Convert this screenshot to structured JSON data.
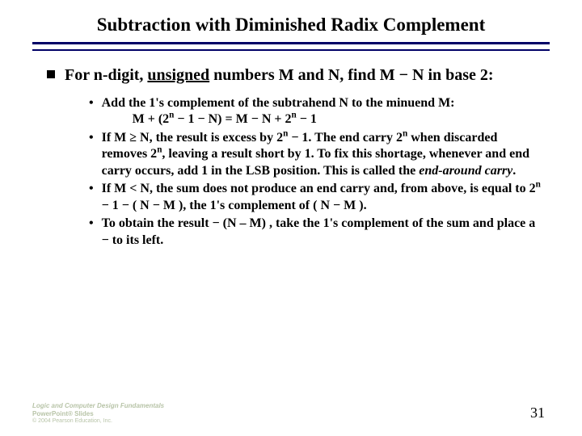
{
  "title": "Subtraction with Diminished Radix Complement",
  "mainBullet": {
    "pre": "For n-digit, ",
    "underlined": "unsigned",
    "post": " numbers M and N, find M − N in base 2:"
  },
  "sub": [
    {
      "text": "Add the 1's complement of the subtrahend N  to the minuend M:",
      "formula": "M + (2ⁿ − 1 − N) = M − N + 2ⁿ − 1"
    },
    {
      "html": "If M ≥ N, the result is excess by 2<sup>n</sup> − 1. The end carry 2<sup>n</sup> when discarded removes 2<sup>n</sup>, leaving a result short by 1. To fix this shortage, whenever and end carry occurs, add 1 in the LSB position. This is called the <span class=\"italic\">end-around carry</span>."
    },
    {
      "html": "If M < N, the sum does not produce an end carry and, from above, is equal to 2<sup>n</sup> − 1 − ( N − M ), the 1's complement of ( N − M )."
    },
    {
      "text": "To obtain the result − (N – M) , take the 1's complement of the sum and place a − to its left."
    }
  ],
  "footer": {
    "line1": "Logic and Computer Design Fundamentals",
    "line2": "PowerPoint® Slides",
    "line3": "© 2004 Pearson Education, Inc."
  },
  "pageNumber": "31"
}
